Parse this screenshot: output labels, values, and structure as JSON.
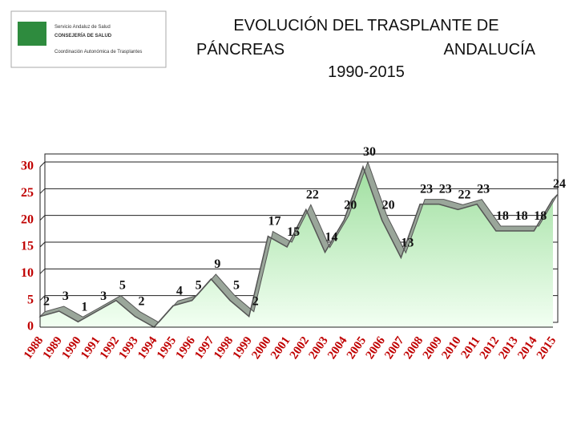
{
  "header": {
    "logo": [
      "Servicio Andaluz de Salud",
      "CONSEJERÍA DE SALUD",
      "Coordinación Autonómica de Trasplantes"
    ]
  },
  "chart_data": {
    "type": "area",
    "title": [
      "EVOLUCIÓN DEL TRASPLANTE DE",
      "PÁNCREAS",
      "ANDALUCÍA",
      "1990-2015"
    ],
    "categories": [
      "1988",
      "1989",
      "1990",
      "1991",
      "1992",
      "1993",
      "1994",
      "1995",
      "1996",
      "1997",
      "1998",
      "1999",
      "2000",
      "2001",
      "2002",
      "2003",
      "2004",
      "2005",
      "2006",
      "2007",
      "2008",
      "2009",
      "2010",
      "2011",
      "2012",
      "2013",
      "2014",
      "2015"
    ],
    "values": [
      2,
      3,
      1,
      3,
      5,
      2,
      0,
      4,
      5,
      9,
      5,
      2,
      17,
      15,
      22,
      14,
      20,
      30,
      20,
      13,
      23,
      23,
      22,
      23,
      18,
      18,
      18,
      24
    ],
    "value_labels": [
      "2",
      "3",
      "1",
      "3",
      "5",
      "2",
      null,
      "4",
      "5",
      "9",
      "5",
      "2",
      "17",
      "15",
      "22",
      "14",
      "20",
      "30",
      "20",
      "13",
      "23",
      "23",
      "22",
      "23",
      "18",
      "18",
      "18",
      "24"
    ],
    "color": "#c8f0c8",
    "line_color": "#555555",
    "ylim": [
      0,
      30
    ],
    "yticks": [
      0,
      5,
      10,
      15,
      20,
      25,
      30
    ],
    "grid": true
  }
}
